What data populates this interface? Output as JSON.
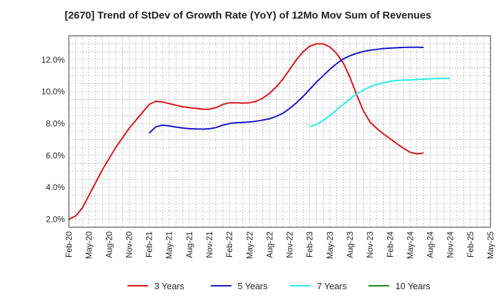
{
  "chart_data": {
    "type": "line",
    "title": "[2670]  Trend of StDev of Growth Rate (YoY) of 12Mo Mov Sum of Revenues",
    "xlabel": "",
    "ylabel": "",
    "ylim": [
      1.5,
      13.5
    ],
    "yticks": [
      2.0,
      4.0,
      6.0,
      8.0,
      10.0,
      12.0
    ],
    "ytick_labels": [
      "2.0%",
      "4.0%",
      "6.0%",
      "8.0%",
      "10.0%",
      "12.0%"
    ],
    "x_tick_labels": [
      "Feb-20",
      "May-20",
      "Aug-20",
      "Nov-20",
      "Feb-21",
      "May-21",
      "Aug-21",
      "Nov-21",
      "Feb-22",
      "May-22",
      "Aug-22",
      "Nov-22",
      "Feb-23",
      "May-23",
      "Aug-23",
      "Nov-23",
      "Feb-24",
      "May-24",
      "Aug-24",
      "Nov-24",
      "Feb-25",
      "May-25"
    ],
    "x_start": "2020-02",
    "x_months": 63,
    "grid": true,
    "legend_position": "bottom",
    "series": [
      {
        "name": "3 Years",
        "color": "#dd1111",
        "start_month_index": 0,
        "values": [
          2.0,
          2.2,
          2.7,
          3.5,
          4.3,
          5.1,
          5.8,
          6.5,
          7.1,
          7.7,
          8.2,
          8.7,
          9.2,
          9.4,
          9.35,
          9.25,
          9.15,
          9.05,
          9.0,
          8.95,
          8.9,
          8.9,
          9.0,
          9.2,
          9.3,
          9.3,
          9.28,
          9.3,
          9.4,
          9.6,
          9.9,
          10.3,
          10.8,
          11.4,
          12.0,
          12.5,
          12.85,
          13.0,
          13.0,
          12.8,
          12.4,
          11.8,
          10.9,
          9.8,
          8.8,
          8.1,
          7.7,
          7.35,
          7.05,
          6.75,
          6.45,
          6.2,
          6.1,
          6.15
        ]
      },
      {
        "name": "5 Years",
        "color": "#1111cc",
        "start_month_index": 12,
        "values": [
          7.4,
          7.8,
          7.9,
          7.85,
          7.78,
          7.72,
          7.68,
          7.66,
          7.65,
          7.67,
          7.75,
          7.9,
          8.0,
          8.05,
          8.07,
          8.1,
          8.15,
          8.22,
          8.3,
          8.45,
          8.65,
          8.95,
          9.3,
          9.7,
          10.15,
          10.6,
          11.0,
          11.4,
          11.75,
          12.05,
          12.25,
          12.4,
          12.52,
          12.6,
          12.65,
          12.7,
          12.73,
          12.75,
          12.77,
          12.78,
          12.78,
          12.77
        ]
      },
      {
        "name": "7 Years",
        "color": "#22eeee",
        "start_month_index": 36,
        "values": [
          7.8,
          7.95,
          8.2,
          8.5,
          8.85,
          9.2,
          9.55,
          9.85,
          10.1,
          10.3,
          10.45,
          10.55,
          10.65,
          10.7,
          10.72,
          10.74,
          10.76,
          10.78,
          10.8,
          10.82,
          10.83,
          10.84
        ]
      },
      {
        "name": "10 Years",
        "color": "#118811",
        "start_month_index": 0,
        "values": []
      }
    ]
  }
}
